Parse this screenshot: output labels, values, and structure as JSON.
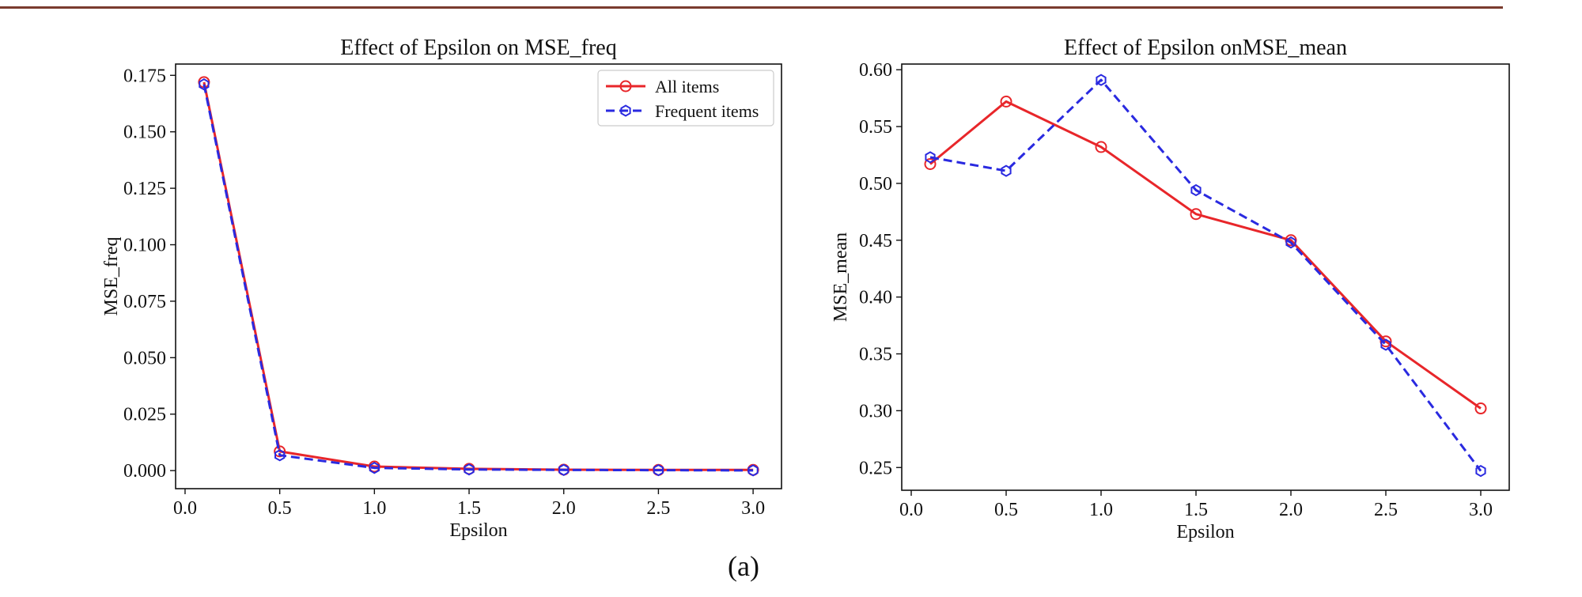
{
  "figure": {
    "panel_label": "(a)",
    "top_rule_color": "#7a3b2e"
  },
  "chart_data": [
    {
      "type": "line",
      "title": "Effect of Epsilon on MSE_freq",
      "xlabel": "Epsilon",
      "ylabel": "MSE_freq",
      "x": [
        0.1,
        0.5,
        1.0,
        1.5,
        2.0,
        2.5,
        3.0
      ],
      "xlim": [
        -0.05,
        3.15
      ],
      "ylim": [
        -0.008,
        0.18
      ],
      "xticks": [
        0.0,
        0.5,
        1.0,
        1.5,
        2.0,
        2.5,
        3.0
      ],
      "xtick_labels": [
        "0.0",
        "0.5",
        "1.0",
        "1.5",
        "2.0",
        "2.5",
        "3.0"
      ],
      "yticks": [
        0.0,
        0.025,
        0.05,
        0.075,
        0.1,
        0.125,
        0.15,
        0.175
      ],
      "ytick_labels": [
        "0.000",
        "0.025",
        "0.050",
        "0.075",
        "0.100",
        "0.125",
        "0.150",
        "0.175"
      ],
      "legend_position": "top-right",
      "series": [
        {
          "name": "All items",
          "color": "#e8262a",
          "style": "solid",
          "marker": "circle",
          "values": [
            0.172,
            0.0085,
            0.0018,
            0.0008,
            0.0004,
            0.0003,
            0.0003
          ]
        },
        {
          "name": "Frequent items",
          "color": "#2a2ae0",
          "style": "dashed",
          "marker": "hexagon",
          "values": [
            0.171,
            0.0068,
            0.0012,
            0.0005,
            0.0003,
            0.0002,
            0.0001
          ]
        }
      ]
    },
    {
      "type": "line",
      "title": "Effect of Epsilon onMSE_mean",
      "xlabel": "Epsilon",
      "ylabel": "MSE_mean",
      "x": [
        0.1,
        0.5,
        1.0,
        1.5,
        2.0,
        2.5,
        3.0
      ],
      "xlim": [
        -0.05,
        3.15
      ],
      "ylim": [
        0.23,
        0.605
      ],
      "xticks": [
        0.0,
        0.5,
        1.0,
        1.5,
        2.0,
        2.5,
        3.0
      ],
      "xtick_labels": [
        "0.0",
        "0.5",
        "1.0",
        "1.5",
        "2.0",
        "2.5",
        "3.0"
      ],
      "yticks": [
        0.25,
        0.3,
        0.35,
        0.4,
        0.45,
        0.5,
        0.55,
        0.6
      ],
      "ytick_labels": [
        "0.25",
        "0.30",
        "0.35",
        "0.40",
        "0.45",
        "0.50",
        "0.55",
        "0.60"
      ],
      "series": [
        {
          "name": "All items",
          "color": "#e8262a",
          "style": "solid",
          "marker": "circle",
          "values": [
            0.517,
            0.572,
            0.532,
            0.473,
            0.45,
            0.361,
            0.302
          ]
        },
        {
          "name": "Frequent items",
          "color": "#2a2ae0",
          "style": "dashed",
          "marker": "hexagon",
          "values": [
            0.523,
            0.511,
            0.591,
            0.494,
            0.448,
            0.358,
            0.247
          ]
        }
      ]
    }
  ]
}
